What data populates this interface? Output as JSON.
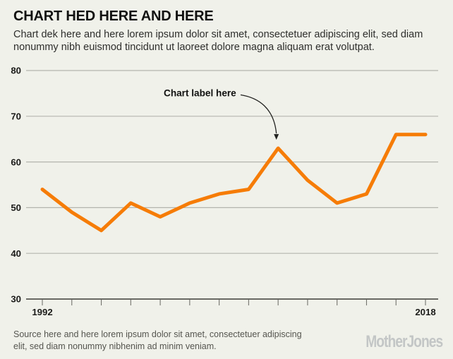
{
  "header": {
    "title": "CHART HED HERE AND HERE",
    "dek": "Chart dek here and here lorem ipsum dolor sit amet, consectetuer adipiscing elit, sed diam nonummy nibh euismod tincidunt ut laoreet dolore magna aliquam erat volutpat."
  },
  "footer": {
    "source": "Source here and here lorem ipsum dolor sit amet, consectetuer adipiscing elit, sed diam nonummy nibhenim ad minim veniam.",
    "logo": "MotherJones"
  },
  "chart_data": {
    "type": "line",
    "title": "CHART HED HERE AND HERE",
    "x": [
      1992,
      1994,
      1996,
      1998,
      2000,
      2002,
      2004,
      2006,
      2008,
      2010,
      2012,
      2014,
      2016,
      2018
    ],
    "values": [
      54,
      49,
      45,
      51,
      48,
      51,
      53,
      54,
      63,
      56,
      51,
      53,
      66,
      66
    ],
    "xlabel": "",
    "ylabel": "",
    "ylim": [
      30,
      80
    ],
    "yticks": [
      30,
      40,
      50,
      60,
      70,
      80
    ],
    "xtick_labels_shown": [
      "1992",
      "2018"
    ],
    "grid": "horizontal",
    "legend": "none",
    "annotation": {
      "label": "Chart label here",
      "target_x": 2008,
      "target_value": 63
    },
    "colors": {
      "line": "#f67c06",
      "gridline": "#b4b5ae",
      "baseline": "#3c3c38",
      "tick": "#73736d",
      "axis_label": "#1b1b19",
      "annotation_text": "#111110",
      "arrow": "#222220",
      "background": "#f0f1ea"
    }
  }
}
